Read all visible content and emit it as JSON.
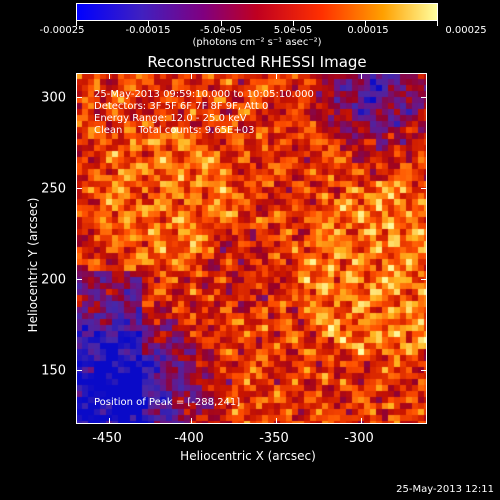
{
  "colorbar": {
    "tick_labels": [
      "-0.00025",
      "-0.00015",
      "-5.0e-05",
      "5.0e-05",
      "0.00015",
      "0.00025"
    ],
    "units": "(photons cm⁻² s⁻¹ asec⁻²)",
    "range": [
      -0.00025,
      0.00025
    ]
  },
  "title": "Reconstructed RHESSI Image",
  "info": {
    "time": "25-May-2013 09:59:10.000 to 10:05:10.000",
    "detectors": "Detectors: 3F 5F 6F 7F 8F 9F, Att 0",
    "energy": "Energy Range: 12.0 - 25.0 keV",
    "clean": "Clean     Total counts: 9.65E+03"
  },
  "peak": "Position of Peak = [-288,241]",
  "axes": {
    "xlabel": "Heliocentric X (arcsec)",
    "ylabel": "Heliocentric Y (arcsec)",
    "x_ticks": [
      "-450",
      "-400",
      "-350",
      "-300"
    ],
    "y_ticks": [
      "300",
      "250",
      "200",
      "150"
    ],
    "x_range": [
      -465,
      -272
    ],
    "y_range": [
      118,
      312
    ]
  },
  "timestamp": "25-May-2013 12:11"
}
